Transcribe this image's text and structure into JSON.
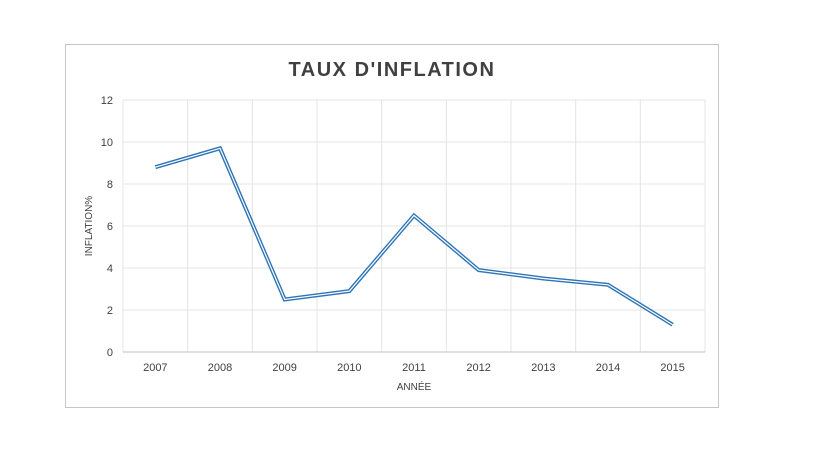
{
  "chart_data": {
    "type": "line",
    "title": "TAUX D'INFLATION",
    "xlabel": "ANNÉE",
    "ylabel": "INFLATION%",
    "categories": [
      "2007",
      "2008",
      "2009",
      "2010",
      "2011",
      "2012",
      "2013",
      "2014",
      "2015"
    ],
    "series": [
      {
        "values": [
          8.8,
          9.7,
          2.5,
          2.9,
          6.5,
          3.9,
          3.5,
          3.2,
          1.3
        ]
      }
    ],
    "ylim": [
      0,
      12
    ],
    "yticks": [
      0,
      2,
      4,
      6,
      8,
      10,
      12
    ],
    "grid": true,
    "line_color": "#2e75b6"
  }
}
